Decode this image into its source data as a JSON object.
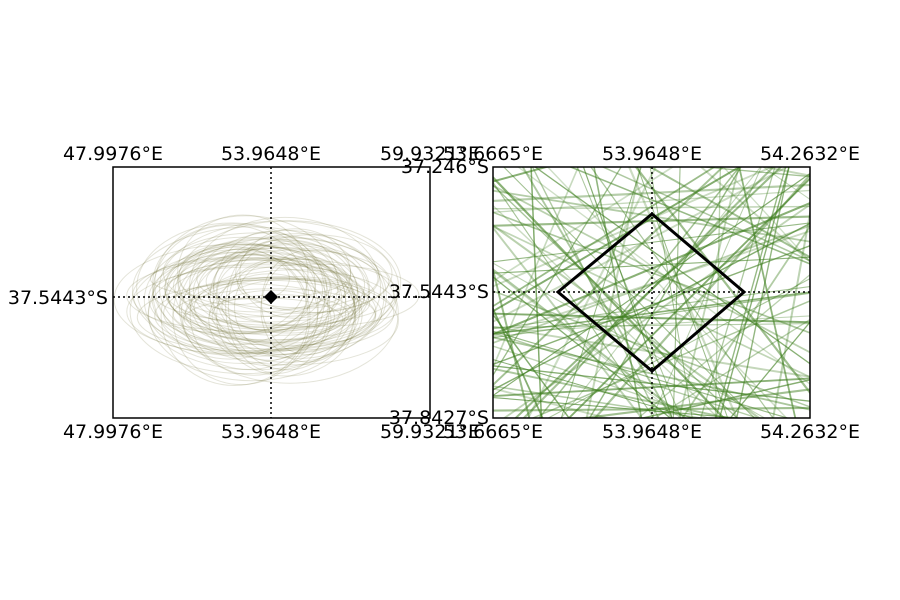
{
  "chart_data": [
    {
      "type": "scatter",
      "description_free": true,
      "x_ticks": [
        "47.9976°E",
        "53.9648°E",
        "59.9321°E"
      ],
      "y_ticks": [
        "37.5443°S"
      ],
      "center": {
        "lon_label": "53.9648°E",
        "lat_label": "37.5443°S"
      },
      "track_color": "#6b6b2a",
      "marker": "diamond",
      "grid": "center crosshair, dotted"
    },
    {
      "type": "line",
      "x_ticks": [
        "53.6665°E",
        "53.9648°E",
        "54.2632°E"
      ],
      "y_ticks": [
        "37.246°S",
        "37.5443°S",
        "37.8427°S"
      ],
      "center": {
        "lon_label": "53.9648°E",
        "lat_label": "37.5443°S"
      },
      "track_color": "#3f7f1f",
      "inset_box": "diamond",
      "grid": "center crosshair, dotted"
    }
  ]
}
